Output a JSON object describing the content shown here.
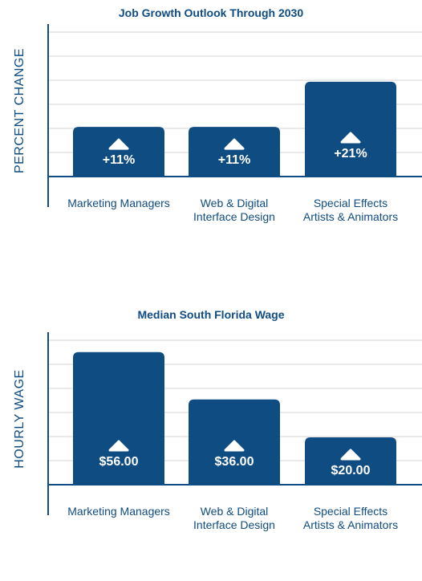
{
  "colors": {
    "bar": "#0f4c81",
    "axis": "#0f4c81",
    "grid": "#d6d6d6",
    "label_text": "#ffffff"
  },
  "chart_data": [
    {
      "type": "bar",
      "title": "Job Growth Outlook Through 2030",
      "ylabel": "PERCENT CHANGE",
      "xlabel": "",
      "categories": [
        [
          "Marketing Managers"
        ],
        [
          "Web & Digital",
          "Interface Design"
        ],
        [
          "Special Effects",
          "Artists & Animators"
        ]
      ],
      "values": [
        11,
        11,
        21
      ],
      "data_labels": [
        "+11%",
        "+11%",
        "+21%"
      ],
      "ylim": [
        0,
        32
      ],
      "grid": true,
      "markers": "triangle-up"
    },
    {
      "type": "bar",
      "title": "Median South Florida Wage",
      "ylabel": "HOURLY WAGE",
      "xlabel": "",
      "categories": [
        [
          "Marketing Managers"
        ],
        [
          "Web & Digital",
          "Interface Design"
        ],
        [
          "Special Effects",
          "Artists & Animators"
        ]
      ],
      "values": [
        56,
        36,
        20
      ],
      "data_labels": [
        "$56.00",
        "$36.00",
        "$20.00"
      ],
      "ylim": [
        0,
        61
      ],
      "grid": true,
      "markers": "triangle-up"
    }
  ]
}
